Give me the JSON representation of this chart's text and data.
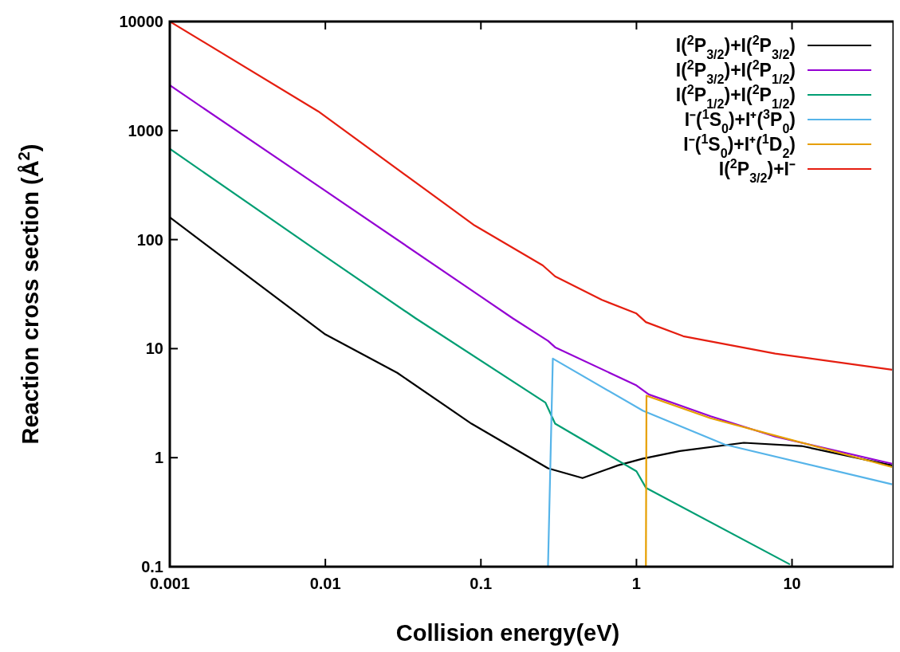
{
  "chart_data": {
    "type": "line",
    "xlabel": "Collision energy(eV)",
    "ylabel": "Reaction cross section (Å$^{2}$)",
    "log": "xy",
    "xlim": [
      0.001,
      45
    ],
    "ylim": [
      0.1,
      10000
    ],
    "xticks": [
      0.001,
      0.01,
      0.1,
      1,
      10
    ],
    "yticks": [
      0.1,
      1,
      10,
      100,
      1000,
      10000
    ],
    "legend": "top right",
    "grid": false,
    "series": [
      {
        "name": "I($^{2}$P$_{3/2}$)+I($^{2}$P$_{3/2}$)",
        "color": "#000000",
        "x": [
          0.001,
          0.01,
          0.029,
          0.087,
          0.27,
          0.45,
          0.76,
          1.1,
          1.9,
          4.9,
          11.5,
          44
        ],
        "values": [
          160,
          13.5,
          6.0,
          2.05,
          0.8,
          0.65,
          0.85,
          0.98,
          1.15,
          1.37,
          1.28,
          0.85
        ]
      },
      {
        "name": "I($^{2}$P$_{3/2}$)+I($^{2}$P$_{1/2}$)",
        "color": "#9400d3",
        "x": [
          0.001,
          0.01,
          0.1,
          0.16,
          0.27,
          0.3,
          1.0,
          1.2,
          3,
          7.8,
          44
        ],
        "values": [
          2600,
          280,
          30,
          19,
          11.8,
          10.3,
          4.6,
          3.8,
          2.4,
          1.56,
          0.88
        ]
      },
      {
        "name": "I($^{2}$P$_{1/2}$)+I($^{2}$P$_{1/2}$)",
        "color": "#009e73",
        "x": [
          0.001,
          0.01,
          0.038,
          0.26,
          0.3,
          1.0,
          1.15,
          9.7
        ],
        "values": [
          680,
          70,
          19,
          3.2,
          2.05,
          0.75,
          0.53,
          0.105
        ]
      },
      {
        "name": "I⁻($^{1}$S$_{0}$)+I⁺($^{3}$P$_{0}$)",
        "color": "#56b4e9",
        "x": [
          0.27,
          0.29,
          1.1,
          3.7,
          44
        ],
        "values": [
          0.1,
          8.1,
          2.7,
          1.32,
          0.57
        ]
      },
      {
        "name": "I⁻($^{1}$S$_{0}$)+I⁺($^{1}$D$_{2}$)",
        "color": "#e69f00",
        "x": [
          1.15,
          1.16,
          3,
          10,
          44
        ],
        "values": [
          0.1,
          3.7,
          2.3,
          1.45,
          0.82
        ]
      },
      {
        "name": "I($^{2}$P$_{3/2}$)+I⁻",
        "color": "#e51e10",
        "x": [
          0.001,
          0.009,
          0.091,
          0.25,
          0.3,
          0.6,
          1.0,
          1.15,
          2,
          7.8,
          44
        ],
        "values": [
          10000,
          1500,
          135,
          58,
          46,
          28,
          21,
          17.5,
          13,
          9,
          6.4
        ]
      }
    ]
  }
}
